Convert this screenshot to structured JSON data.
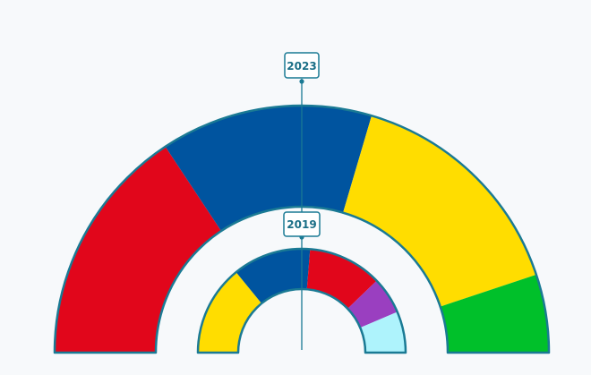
{
  "chart_data": {
    "type": "pie",
    "variant": "semicircle-parliament-comparison",
    "colors": {
      "outline": "#1a7a94",
      "background": "#f7f9fb",
      "label_border": "#1a7a94",
      "label_text": "#1a6e86"
    },
    "rings": [
      {
        "year": "2019",
        "role": "inner",
        "segments": [
          {
            "color": "#ffdd00",
            "value": 22
          },
          {
            "color": "#00549f",
            "value": 19
          },
          {
            "color": "#e1061b",
            "value": 18
          },
          {
            "color": "#9a3fc0",
            "value": 9
          },
          {
            "color": "#aef3fc",
            "value": 10
          }
        ]
      },
      {
        "year": "2023",
        "role": "outer",
        "segments": [
          {
            "color": "#e1061b",
            "value": 43
          },
          {
            "color": "#00549f",
            "value": 38
          },
          {
            "color": "#ffdd00",
            "value": 42
          },
          {
            "color": "#00c02a",
            "value": 14
          }
        ]
      }
    ]
  }
}
